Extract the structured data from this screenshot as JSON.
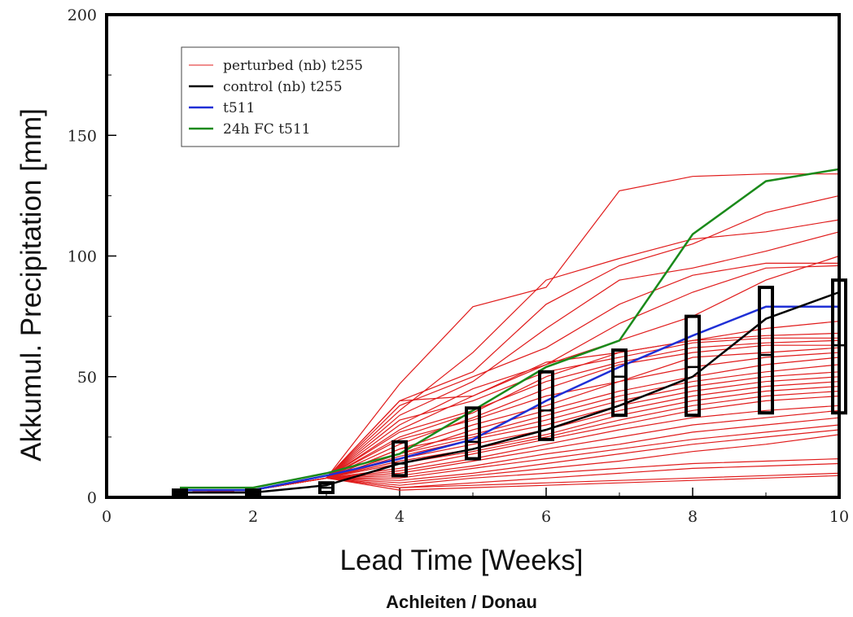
{
  "chart_data": {
    "type": "line",
    "title": "",
    "xlabel": "Lead Time [Weeks]",
    "ylabel": "Akkumul. Precipitation [mm]",
    "caption": "Achleiten / Donau",
    "xlim": [
      0,
      10
    ],
    "ylim": [
      0,
      200
    ],
    "x_ticks": [
      0,
      2,
      4,
      6,
      8,
      10
    ],
    "y_ticks": [
      0,
      50,
      100,
      150,
      200
    ],
    "grid": false,
    "legend_position": "top-left",
    "colors": {
      "perturbed": "#e01b1b",
      "control": "#000000",
      "t511": "#1f2fd6",
      "fc": "#1a8a1a",
      "box": "#000000"
    },
    "legend": [
      {
        "label": "perturbed (nb) t255",
        "color": "#e01b1b",
        "width": 1
      },
      {
        "label": "control (nb) t255",
        "color": "#000000",
        "width": 2.5
      },
      {
        "label": "t511",
        "color": "#1f2fd6",
        "width": 2.5
      },
      {
        "label": "24h FC t511",
        "color": "#1a8a1a",
        "width": 2.5
      }
    ],
    "x": [
      1,
      2,
      3,
      4,
      5,
      6,
      7,
      8,
      9,
      10
    ],
    "control": {
      "name": "control (nb) t255",
      "values": [
        2,
        2,
        5,
        14,
        20,
        28,
        38,
        50,
        74,
        85
      ]
    },
    "t511": {
      "name": "t511",
      "values": [
        3,
        3,
        9,
        16,
        24,
        40,
        54,
        67,
        79,
        79
      ]
    },
    "fc": {
      "name": "24h FC t511",
      "values": [
        4,
        4,
        10,
        18,
        36,
        54,
        65,
        109,
        131,
        136
      ]
    },
    "perturbed": {
      "name": "perturbed (nb) t255",
      "members": [
        [
          2,
          3,
          8,
          47,
          79,
          87,
          127,
          133,
          134,
          134
        ],
        [
          2,
          3,
          8,
          36,
          60,
          90,
          99,
          107,
          110,
          115
        ],
        [
          2,
          3,
          8,
          40,
          52,
          80,
          96,
          105,
          118,
          125
        ],
        [
          2,
          3,
          8,
          34,
          48,
          70,
          90,
          95,
          102,
          110
        ],
        [
          2,
          3,
          8,
          38,
          50,
          62,
          80,
          92,
          97,
          97
        ],
        [
          2,
          3,
          8,
          30,
          45,
          55,
          65,
          75,
          90,
          100
        ],
        [
          2,
          3,
          8,
          28,
          42,
          55,
          72,
          85,
          95,
          96
        ],
        [
          2,
          3,
          8,
          40,
          42,
          56,
          60,
          65,
          67,
          68
        ],
        [
          2,
          3,
          8,
          32,
          40,
          52,
          58,
          64,
          66,
          66
        ],
        [
          2,
          3,
          8,
          27,
          36,
          48,
          56,
          62,
          64,
          65
        ],
        [
          2,
          3,
          8,
          25,
          35,
          50,
          60,
          65,
          70,
          73
        ],
        [
          2,
          3,
          8,
          22,
          33,
          45,
          55,
          60,
          63,
          63
        ],
        [
          2,
          3,
          8,
          24,
          32,
          42,
          48,
          58,
          60,
          62
        ],
        [
          2,
          3,
          8,
          20,
          30,
          38,
          48,
          54,
          58,
          60
        ],
        [
          2,
          3,
          8,
          18,
          28,
          36,
          44,
          50,
          55,
          58
        ],
        [
          2,
          3,
          8,
          20,
          26,
          34,
          42,
          48,
          52,
          55
        ],
        [
          2,
          3,
          8,
          18,
          25,
          32,
          40,
          46,
          50,
          52
        ],
        [
          2,
          3,
          8,
          17,
          24,
          30,
          38,
          44,
          48,
          50
        ],
        [
          2,
          3,
          8,
          16,
          22,
          28,
          36,
          42,
          46,
          48
        ],
        [
          2,
          3,
          8,
          15,
          20,
          26,
          34,
          40,
          44,
          46
        ],
        [
          2,
          3,
          8,
          14,
          19,
          25,
          32,
          38,
          42,
          44
        ],
        [
          2,
          3,
          8,
          12,
          18,
          24,
          30,
          36,
          40,
          42
        ],
        [
          2,
          3,
          8,
          11,
          16,
          22,
          28,
          33,
          36,
          38
        ],
        [
          2,
          3,
          8,
          10,
          15,
          20,
          25,
          30,
          33,
          36
        ],
        [
          2,
          3,
          8,
          9,
          13,
          18,
          22,
          27,
          30,
          33
        ],
        [
          2,
          3,
          8,
          8,
          12,
          16,
          20,
          24,
          27,
          30
        ],
        [
          2,
          3,
          8,
          7,
          10,
          14,
          18,
          22,
          25,
          28
        ],
        [
          2,
          3,
          8,
          6,
          9,
          12,
          15,
          19,
          22,
          26
        ],
        [
          2,
          3,
          8,
          5,
          8,
          10,
          12,
          14,
          15,
          16
        ],
        [
          2,
          3,
          8,
          4,
          6,
          8,
          10,
          12,
          13,
          14
        ],
        [
          2,
          3,
          8,
          4,
          5,
          6,
          7,
          8,
          9,
          10
        ],
        [
          2,
          3,
          8,
          3,
          4,
          5,
          6,
          7,
          8,
          9
        ]
      ]
    },
    "boxes": [
      {
        "x": 1,
        "low": 1,
        "high": 3,
        "median": 2
      },
      {
        "x": 2,
        "low": 1,
        "high": 3,
        "median": 2
      },
      {
        "x": 3,
        "low": 2,
        "high": 6,
        "median": 4
      },
      {
        "x": 4,
        "low": 9,
        "high": 23,
        "median": 14
      },
      {
        "x": 5,
        "low": 16,
        "high": 37,
        "median": 23
      },
      {
        "x": 6,
        "low": 24,
        "high": 52,
        "median": 36
      },
      {
        "x": 7,
        "low": 34,
        "high": 61,
        "median": 50
      },
      {
        "x": 8,
        "low": 34,
        "high": 75,
        "median": 54
      },
      {
        "x": 9,
        "low": 35,
        "high": 87,
        "median": 59
      },
      {
        "x": 10,
        "low": 35,
        "high": 90,
        "median": 63
      }
    ]
  }
}
